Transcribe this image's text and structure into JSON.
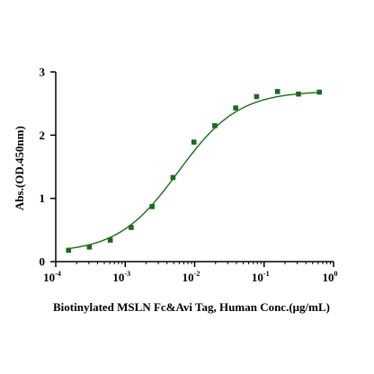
{
  "chart_data": {
    "type": "scatter",
    "title": "",
    "xlabel": "Biotinylated MSLN Fc&Avi Tag, Human  Conc.(μg/mL)",
    "ylabel": "Abs.(OD.450nm)",
    "xscale": "log",
    "xlim": [
      0.0001,
      1
    ],
    "ylim": [
      0,
      3
    ],
    "x_ticks": [
      {
        "value": 0.0001,
        "base": "10",
        "exp": "-4"
      },
      {
        "value": 0.001,
        "base": "10",
        "exp": "-3"
      },
      {
        "value": 0.01,
        "base": "10",
        "exp": "-2"
      },
      {
        "value": 0.1,
        "base": "10",
        "exp": "-1"
      },
      {
        "value": 1,
        "base": "10",
        "exp": "0"
      }
    ],
    "y_ticks": [
      {
        "value": 0,
        "label": "0"
      },
      {
        "value": 1,
        "label": "1"
      },
      {
        "value": 2,
        "label": "2"
      },
      {
        "value": 3,
        "label": "3"
      }
    ],
    "grid": false,
    "legend": "none",
    "series": [
      {
        "color": "#1a6b1a",
        "marker": "square",
        "fit": "four-parameter-logistic",
        "x": [
          0.000153,
          0.000305,
          0.00061,
          0.00122,
          0.00244,
          0.00488,
          0.00977,
          0.0195,
          0.039,
          0.078,
          0.156,
          0.3125,
          0.625
        ],
        "y": [
          0.18,
          0.23,
          0.34,
          0.54,
          0.87,
          1.33,
          1.89,
          2.15,
          2.43,
          2.61,
          2.69,
          2.65,
          2.68
        ]
      }
    ],
    "curve_color": "#1a6b1a"
  }
}
